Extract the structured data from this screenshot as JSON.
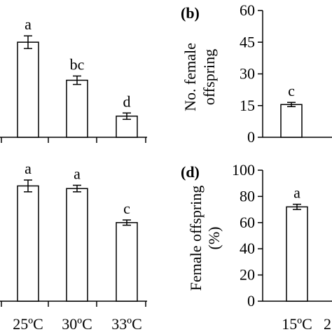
{
  "chart_data": [
    {
      "panel": "a",
      "type": "bar",
      "categories": [
        "25ºC",
        "30ºC",
        "33ºC"
      ],
      "values": [
        45,
        27,
        10
      ],
      "errors": [
        3,
        2,
        1.5
      ],
      "letters": [
        "a",
        "bc",
        "d"
      ],
      "ylim": [
        0,
        60
      ]
    },
    {
      "panel": "b",
      "type": "bar",
      "panel_label": "(b)",
      "ylabel_lines": [
        "No. female",
        "offspring"
      ],
      "yticks": [
        "0",
        "15",
        "30",
        "45",
        "60"
      ],
      "categories": [
        "15ºC"
      ],
      "values": [
        15.5
      ],
      "errors": [
        1
      ],
      "letters": [
        "c"
      ],
      "ylim": [
        0,
        60
      ]
    },
    {
      "panel": "c",
      "type": "bar",
      "categories": [
        "25ºC",
        "30ºC",
        "33ºC"
      ],
      "values": [
        88,
        86,
        60
      ],
      "errors": [
        4.5,
        2.5,
        2
      ],
      "letters": [
        "a",
        "a",
        "c"
      ],
      "ylim": [
        0,
        100
      ]
    },
    {
      "panel": "d",
      "type": "bar",
      "panel_label": "(d)",
      "ylabel_lines": [
        "Female offspring",
        "(%)"
      ],
      "yticks": [
        "0",
        "20",
        "40",
        "60",
        "80",
        "100"
      ],
      "categories": [
        "15ºC"
      ],
      "values": [
        72
      ],
      "errors": [
        2
      ],
      "letters": [
        "a"
      ],
      "ylim": [
        0,
        100
      ]
    }
  ],
  "partial_tick_label": "2"
}
